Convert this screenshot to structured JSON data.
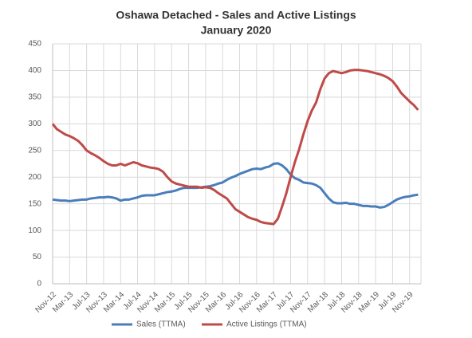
{
  "chart_data": {
    "type": "line",
    "title": "Oshawa Detached - Sales and Active Listings",
    "subtitle": "January 2020",
    "categories": [
      "Nov-12",
      null,
      null,
      null,
      "Mar-13",
      null,
      null,
      null,
      "Jul-13",
      null,
      null,
      null,
      "Nov-13",
      null,
      null,
      null,
      "Mar-14",
      null,
      null,
      null,
      "Jul-14",
      null,
      null,
      null,
      "Nov-14",
      null,
      null,
      null,
      "Mar-15",
      null,
      null,
      null,
      "Jul-15",
      null,
      null,
      null,
      "Nov-15",
      null,
      null,
      null,
      "Mar-16",
      null,
      null,
      null,
      "Jul-16",
      null,
      null,
      null,
      "Nov-16",
      null,
      null,
      null,
      "Mar-17",
      null,
      null,
      null,
      "Jul-17",
      null,
      null,
      null,
      "Nov-17",
      null,
      null,
      null,
      "Mar-18",
      null,
      null,
      null,
      "Jul-18",
      null,
      null,
      null,
      "Nov-18",
      null,
      null,
      null,
      "Mar-19",
      null,
      null,
      null,
      "Jul-19",
      null,
      null,
      null,
      "Nov-19",
      null,
      null
    ],
    "series": [
      {
        "name": "Sales (TTMA)",
        "color": "#4a7ebb",
        "values": [
          158,
          157,
          156,
          156,
          155,
          156,
          157,
          158,
          158,
          160,
          161,
          162,
          162,
          163,
          162,
          160,
          156,
          158,
          158,
          160,
          162,
          165,
          166,
          166,
          166,
          168,
          170,
          172,
          173,
          175,
          178,
          180,
          180,
          180,
          180,
          181,
          182,
          183,
          185,
          188,
          190,
          195,
          199,
          202,
          206,
          209,
          212,
          215,
          216,
          215,
          218,
          220,
          225,
          226,
          222,
          215,
          205,
          198,
          195,
          190,
          189,
          188,
          185,
          180,
          170,
          160,
          153,
          151,
          151,
          152,
          150,
          150,
          148,
          146,
          146,
          145,
          145,
          143,
          144,
          148,
          153,
          158,
          161,
          163,
          164,
          166,
          167
        ]
      },
      {
        "name": "Active Listings (TTMA)",
        "color": "#be4b48",
        "values": [
          300,
          290,
          285,
          280,
          277,
          273,
          268,
          260,
          250,
          245,
          241,
          236,
          230,
          225,
          222,
          222,
          225,
          222,
          225,
          228,
          226,
          222,
          220,
          218,
          217,
          215,
          210,
          200,
          192,
          188,
          186,
          184,
          182,
          182,
          182,
          180,
          181,
          180,
          176,
          170,
          165,
          160,
          150,
          140,
          135,
          130,
          125,
          122,
          120,
          116,
          114,
          113,
          112,
          122,
          145,
          170,
          200,
          228,
          252,
          280,
          305,
          325,
          340,
          365,
          385,
          395,
          399,
          397,
          395,
          397,
          400,
          401,
          401,
          400,
          399,
          397,
          395,
          393,
          390,
          386,
          380,
          370,
          358,
          350,
          342,
          335,
          326
        ]
      }
    ],
    "ylim": [
      0,
      450
    ],
    "yticks": [
      0,
      50,
      100,
      150,
      200,
      250,
      300,
      350,
      400,
      450
    ],
    "grid": true,
    "legend": "bottom"
  }
}
